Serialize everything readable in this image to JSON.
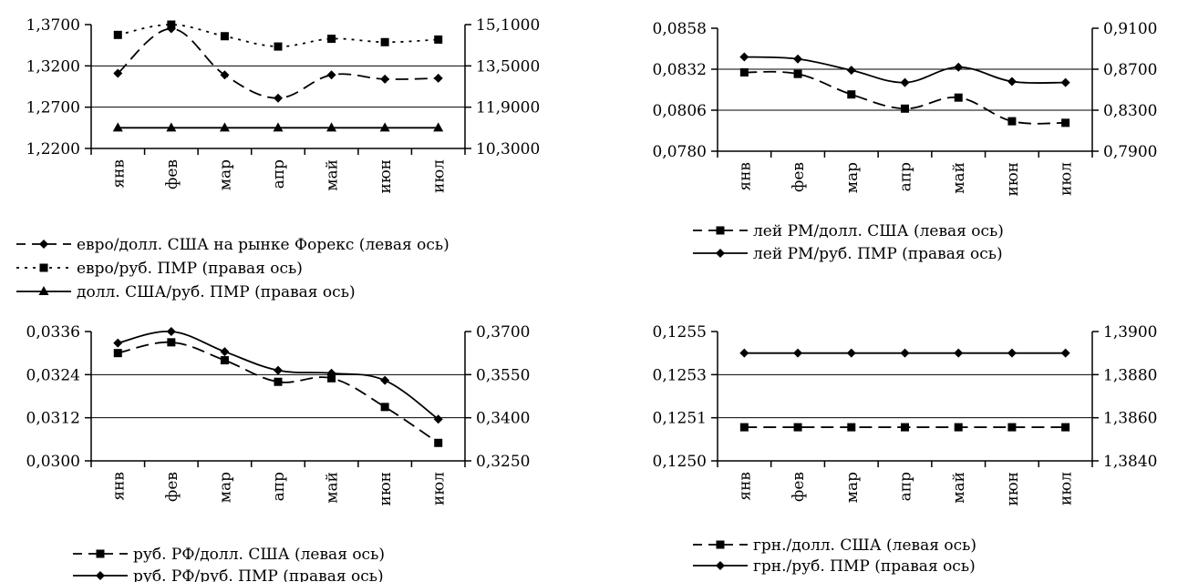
{
  "chart_data": [
    {
      "type": "line",
      "categories": [
        "янв",
        "фев",
        "мар",
        "апр",
        "май",
        "июн",
        "июл"
      ],
      "y_left": {
        "ticks": [
          "1,2200",
          "1,2700",
          "1,3200",
          "1,3700"
        ],
        "range": [
          1.22,
          1.37
        ]
      },
      "y_right": {
        "ticks": [
          "10,3000",
          "11,9000",
          "13,5000",
          "15,1000"
        ],
        "range": [
          10.3,
          15.1
        ]
      },
      "grid": true,
      "series": [
        {
          "name": "евро/долл. США на рынке Форекс (левая ось)",
          "axis": "left",
          "style": "dashed",
          "marker": "diamond",
          "values": [
            1.311,
            1.365,
            1.309,
            1.281,
            1.309,
            1.304,
            1.305
          ]
        },
        {
          "name": "евро/руб. ПМР (правая ось)",
          "axis": "right",
          "style": "dotted",
          "marker": "square",
          "values": [
            14.7,
            15.1,
            14.65,
            14.25,
            14.55,
            14.42,
            14.52
          ]
        },
        {
          "name": "долл. США/руб. ПМР (правая ось)",
          "axis": "right",
          "style": "solid",
          "marker": "triangle",
          "values": [
            11.1,
            11.1,
            11.1,
            11.1,
            11.1,
            11.1,
            11.1
          ]
        }
      ],
      "legend_position": "bottom"
    },
    {
      "type": "line",
      "categories": [
        "янв",
        "фев",
        "мар",
        "апр",
        "май",
        "июн",
        "июл"
      ],
      "y_left": {
        "ticks": [
          "0,0780",
          "0,0806",
          "0,0832",
          "0,0858"
        ],
        "range": [
          0.078,
          0.0858
        ]
      },
      "y_right": {
        "ticks": [
          "0,7900",
          "0,8300",
          "0,8700",
          "0,9100"
        ],
        "range": [
          0.79,
          0.91
        ]
      },
      "grid": true,
      "series": [
        {
          "name": "лей РМ/долл. США (левая ось)",
          "axis": "left",
          "style": "dashed",
          "marker": "square",
          "values": [
            0.083,
            0.0829,
            0.0816,
            0.0807,
            0.0814,
            0.0799,
            0.0798
          ]
        },
        {
          "name": "лей РМ/руб. ПМР (правая ось)",
          "axis": "right",
          "style": "solid",
          "marker": "diamond",
          "values": [
            0.882,
            0.88,
            0.869,
            0.857,
            0.872,
            0.858,
            0.857
          ]
        }
      ],
      "legend_position": "bottom"
    },
    {
      "type": "line",
      "categories": [
        "янв",
        "фев",
        "мар",
        "апр",
        "май",
        "июн",
        "июл"
      ],
      "y_left": {
        "ticks": [
          "0,0300",
          "0,0312",
          "0,0324",
          "0,0336"
        ],
        "range": [
          0.03,
          0.0336
        ]
      },
      "y_right": {
        "ticks": [
          "0,3250",
          "0,3400",
          "0,3550",
          "0,3700"
        ],
        "range": [
          0.325,
          0.37
        ]
      },
      "grid": true,
      "series": [
        {
          "name": "руб. РФ/долл. США (левая ось)",
          "axis": "left",
          "style": "dashed",
          "marker": "square",
          "values": [
            0.033,
            0.0333,
            0.0328,
            0.0322,
            0.0323,
            0.0315,
            0.0305
          ]
        },
        {
          "name": "руб. РФ/руб. ПМР (правая ось)",
          "axis": "right",
          "style": "solid",
          "marker": "diamond",
          "values": [
            0.366,
            0.37,
            0.363,
            0.3565,
            0.3555,
            0.353,
            0.3395
          ]
        }
      ],
      "legend_position": "bottom"
    },
    {
      "type": "line",
      "categories": [
        "янв",
        "фев",
        "мар",
        "апр",
        "май",
        "июн",
        "июл"
      ],
      "y_left": {
        "ticks": [
          "0,1250",
          "0,1251",
          "0,1253",
          "0,1255"
        ],
        "range": [
          0.125,
          0.1255
        ]
      },
      "y_right": {
        "ticks": [
          "1,3840",
          "1,3860",
          "1,3880",
          "1,3900"
        ],
        "range": [
          1.384,
          1.39
        ]
      },
      "grid": true,
      "series": [
        {
          "name": "грн./долл. США (левая ось)",
          "axis": "left",
          "style": "dashed",
          "marker": "square",
          "values": [
            0.12513,
            0.12513,
            0.12513,
            0.12513,
            0.12513,
            0.12513,
            0.12513
          ]
        },
        {
          "name": "грн./руб. ПМР (правая ось)",
          "axis": "right",
          "style": "solid",
          "marker": "diamond",
          "values": [
            1.389,
            1.389,
            1.389,
            1.389,
            1.389,
            1.389,
            1.389
          ]
        }
      ],
      "legend_position": "bottom"
    }
  ]
}
